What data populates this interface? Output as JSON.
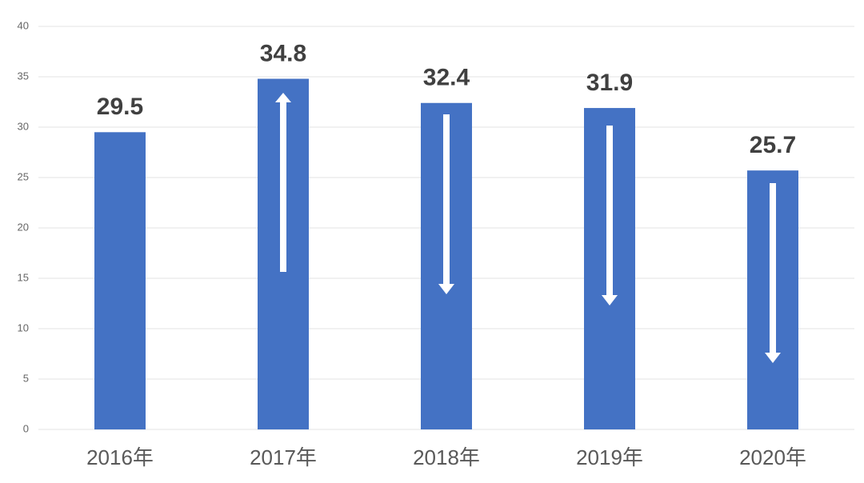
{
  "chart_data": {
    "type": "bar",
    "categories": [
      "2016年",
      "2017年",
      "2018年",
      "2019年",
      "2020年"
    ],
    "values": [
      29.5,
      34.8,
      32.4,
      31.9,
      25.7
    ],
    "color": "#4472c4",
    "ylim": [
      0,
      40
    ],
    "yticks": [
      0,
      5,
      10,
      15,
      20,
      25,
      30,
      35,
      40
    ],
    "grid": true
  }
}
